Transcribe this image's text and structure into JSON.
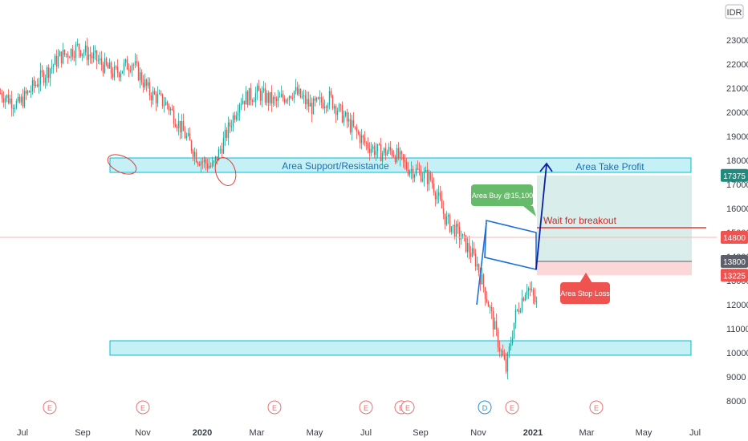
{
  "currency": "IDR",
  "chart_data": {
    "type": "candlestick",
    "y_axis": {
      "ticks": [
        8000,
        9000,
        10000,
        11000,
        12000,
        13000,
        14000,
        15000,
        16000,
        17000,
        18000,
        19000,
        20000,
        21000,
        22000,
        23000
      ],
      "range": [
        7500,
        23700
      ],
      "position": "right"
    },
    "x_axis": {
      "labels": [
        {
          "text": "Jul",
          "bold": false
        },
        {
          "text": "Sep",
          "bold": false
        },
        {
          "text": "Nov",
          "bold": false
        },
        {
          "text": "2020",
          "bold": true
        },
        {
          "text": "Mar",
          "bold": false
        },
        {
          "text": "May",
          "bold": false
        },
        {
          "text": "Jul",
          "bold": false
        },
        {
          "text": "Sep",
          "bold": false
        },
        {
          "text": "Nov",
          "bold": false
        },
        {
          "text": "2021",
          "bold": true
        },
        {
          "text": "Mar",
          "bold": false
        },
        {
          "text": "May",
          "bold": false
        },
        {
          "text": "Jul",
          "bold": false
        }
      ]
    },
    "price_path": [
      [
        0,
        20800
      ],
      [
        0.3,
        20300
      ],
      [
        0.6,
        21200
      ],
      [
        1.0,
        22300
      ],
      [
        1.3,
        22700
      ],
      [
        1.6,
        22200
      ],
      [
        1.9,
        21600
      ],
      [
        2.2,
        22100
      ],
      [
        2.5,
        20800
      ],
      [
        2.8,
        20300
      ],
      [
        3.1,
        19000
      ],
      [
        3.3,
        18100
      ],
      [
        3.55,
        17700
      ],
      [
        3.75,
        18900
      ],
      [
        4.0,
        20500
      ],
      [
        4.3,
        20800
      ],
      [
        4.6,
        20400
      ],
      [
        4.9,
        20900
      ],
      [
        5.2,
        20200
      ],
      [
        5.5,
        20600
      ],
      [
        5.8,
        19600
      ],
      [
        6.1,
        18700
      ],
      [
        6.35,
        18300
      ],
      [
        6.55,
        18400
      ],
      [
        6.8,
        17700
      ],
      [
        7.0,
        17500
      ],
      [
        7.2,
        17200
      ],
      [
        7.45,
        15500
      ],
      [
        7.7,
        14800
      ],
      [
        7.95,
        13800
      ],
      [
        8.15,
        12100
      ],
      [
        8.3,
        10600
      ],
      [
        8.45,
        9300
      ],
      [
        8.6,
        11500
      ],
      [
        8.8,
        12800
      ],
      [
        9.0,
        11800
      ],
      [
        9.2,
        10900
      ],
      [
        9.5,
        10700
      ],
      [
        9.8,
        11100
      ],
      [
        10.1,
        10800
      ],
      [
        10.3,
        12500
      ],
      [
        10.5,
        13200
      ],
      [
        10.7,
        12400
      ],
      [
        11.0,
        11900
      ],
      [
        11.3,
        12200
      ],
      [
        11.6,
        11800
      ],
      [
        11.9,
        12100
      ],
      [
        12.2,
        11900
      ],
      [
        12.5,
        12300
      ],
      [
        12.8,
        11800
      ],
      [
        13.1,
        11700
      ],
      [
        13.4,
        12100
      ],
      [
        13.7,
        11700
      ],
      [
        14.0,
        11000
      ],
      [
        14.2,
        10700
      ],
      [
        14.4,
        10500
      ],
      [
        14.6,
        10800
      ],
      [
        14.8,
        10900
      ],
      [
        15.0,
        11500
      ],
      [
        15.2,
        12100
      ],
      [
        15.4,
        12600
      ],
      [
        15.6,
        12400
      ],
      [
        15.8,
        13300
      ],
      [
        16.0,
        14100
      ],
      [
        16.2,
        14900
      ],
      [
        16.4,
        14600
      ],
      [
        16.6,
        14800
      ],
      [
        16.8,
        14400
      ],
      [
        17.0,
        14600
      ],
      [
        17.2,
        14000
      ],
      [
        17.4,
        13700
      ],
      [
        17.6,
        13900
      ],
      [
        17.75,
        13800
      ]
    ],
    "price_markers": [
      {
        "value": 17375,
        "text": "17375",
        "color": "#1f8a7e"
      },
      {
        "value": 14800,
        "text": "14800",
        "color": "#ef5350"
      },
      {
        "value": 13800,
        "text": "13800",
        "color": "#5d606b"
      },
      {
        "value": 13225,
        "text": "13225",
        "color": "#ef5350"
      }
    ],
    "zones": [
      {
        "kind": "support-resistance",
        "label": "Area Support/Resistance",
        "y_range": [
          17500,
          18100
        ]
      },
      {
        "kind": "support",
        "label": "",
        "y_range": [
          9900,
          10500
        ]
      }
    ],
    "position": {
      "take_profit_label": "Area Take Profit",
      "stop_loss_label": "Area Stop Loss",
      "entry": 13800,
      "take_profit": 17375,
      "stop_loss": 13225
    },
    "annotations": {
      "buy_area": "Area Buy @15,100",
      "breakout": "Wait for breakout"
    },
    "events": [
      "E",
      "E",
      "E",
      "E",
      "E",
      "E",
      "D",
      "E",
      "E"
    ],
    "colors": {
      "up": "#26a69a",
      "down": "#ef5350",
      "zone_fill": "#b2ebf2",
      "zone_border": "#00bcd4",
      "arrow": "#0d1fa3",
      "channel": "#1e6fd9",
      "take_profit_fill": "#d5ece8",
      "stop_loss_fill": "#fbd3d3",
      "buy_bubble": "#66bb6a",
      "stop_bubble": "#ef5350"
    }
  }
}
